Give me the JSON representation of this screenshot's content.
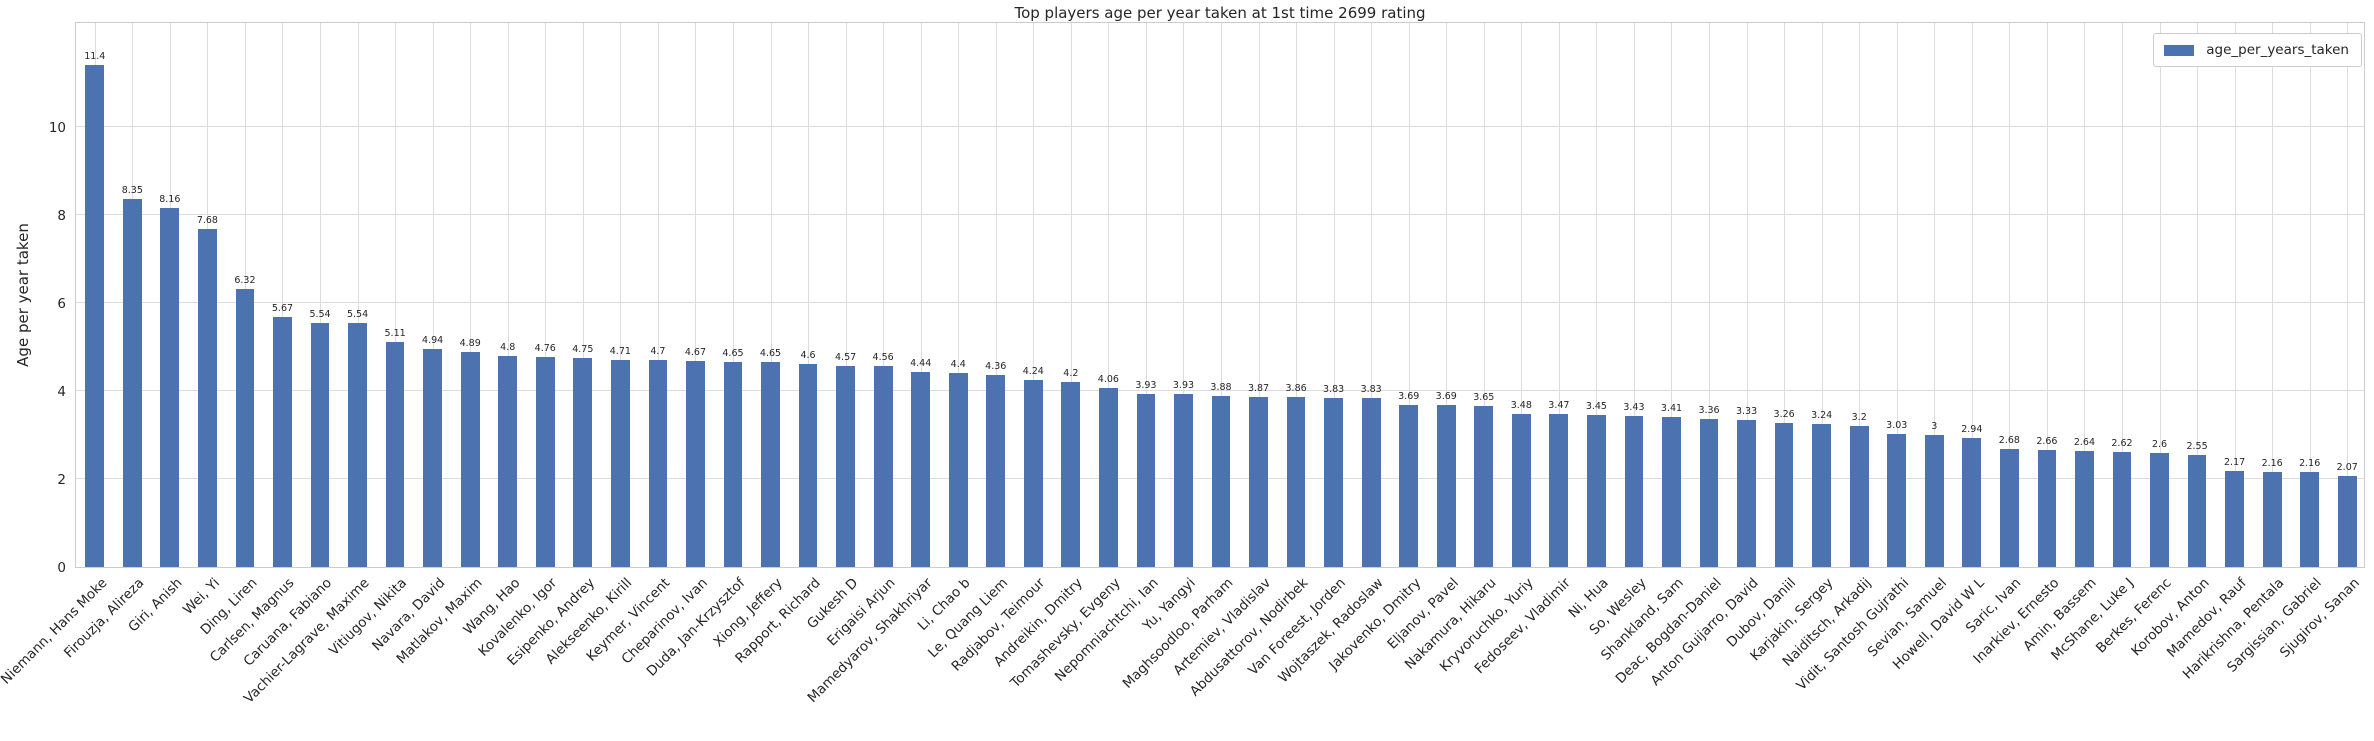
{
  "chart_data": {
    "type": "bar",
    "title": "Top players age per year taken at 1st time 2699 rating",
    "xlabel": "",
    "ylabel": "Age per year taken",
    "ylim": [
      0,
      12.4
    ],
    "yticks": [
      0,
      2,
      4,
      6,
      8,
      10
    ],
    "grid": true,
    "legend_position": "upper right",
    "bar_color": "#4C72B0",
    "series_name": "age_per_years_taken",
    "categories": [
      "Niemann, Hans Moke",
      "Firouzja, Alireza",
      "Giri, Anish",
      "Wei, Yi",
      "Ding, Liren",
      "Carlsen, Magnus",
      "Caruana, Fabiano",
      "Vachier-Lagrave, Maxime",
      "Vitiugov, Nikita",
      "Navara, David",
      "Matlakov, Maxim",
      "Wang, Hao",
      "Kovalenko, Igor",
      "Esipenko, Andrey",
      "Alekseenko, Kirill",
      "Keymer, Vincent",
      "Cheparinov, Ivan",
      "Duda, Jan-Krzysztof",
      "Xiong, Jeffery",
      "Rapport, Richard",
      "Gukesh D",
      "Erigaisi Arjun",
      "Mamedyarov, Shakhriyar",
      "Li, Chao b",
      "Le, Quang Liem",
      "Radjabov, Teimour",
      "Andreikin, Dmitry",
      "Tomashevsky, Evgeny",
      "Nepomniachtchi, Ian",
      "Yu, Yangyi",
      "Maghsoodloo, Parham",
      "Artemiev, Vladislav",
      "Abdusattorov, Nodirbek",
      "Van Foreest, Jorden",
      "Wojtaszek, Radoslaw",
      "Jakovenko, Dmitry",
      "Eljanov, Pavel",
      "Nakamura, Hikaru",
      "Kryvoruchko, Yuriy",
      "Fedoseev, Vladimir",
      "Ni, Hua",
      "So, Wesley",
      "Shankland, Sam",
      "Deac, Bogdan-Daniel",
      "Anton Guijarro, David",
      "Dubov, Daniil",
      "Karjakin, Sergey",
      "Naiditsch, Arkadij",
      "Vidit, Santosh Gujrathi",
      "Sevian, Samuel",
      "Howell, David W L",
      "Saric, Ivan",
      "Inarkiev, Ernesto",
      "Amin, Bassem",
      "McShane, Luke J",
      "Berkes, Ferenc",
      "Korobov, Anton",
      "Mamedov, Rauf",
      "Harikrishna, Pentala",
      "Sargissian, Gabriel",
      "Sjugirov, Sanan"
    ],
    "values": [
      11.4,
      8.35,
      8.16,
      7.68,
      6.32,
      5.67,
      5.54,
      5.54,
      5.11,
      4.94,
      4.89,
      4.8,
      4.76,
      4.75,
      4.71,
      4.7,
      4.67,
      4.65,
      4.65,
      4.6,
      4.57,
      4.56,
      4.44,
      4.4,
      4.36,
      4.24,
      4.2,
      4.06,
      3.93,
      3.93,
      3.88,
      3.87,
      3.86,
      3.83,
      3.83,
      3.69,
      3.69,
      3.65,
      3.48,
      3.47,
      3.45,
      3.43,
      3.41,
      3.36,
      3.33,
      3.26,
      3.24,
      3.2,
      3.03,
      3,
      2.94,
      2.68,
      2.66,
      2.64,
      2.62,
      2.6,
      2.55,
      2.17,
      2.16,
      2.16,
      2.07
    ]
  },
  "legend": {
    "label": "age_per_years_taken"
  }
}
